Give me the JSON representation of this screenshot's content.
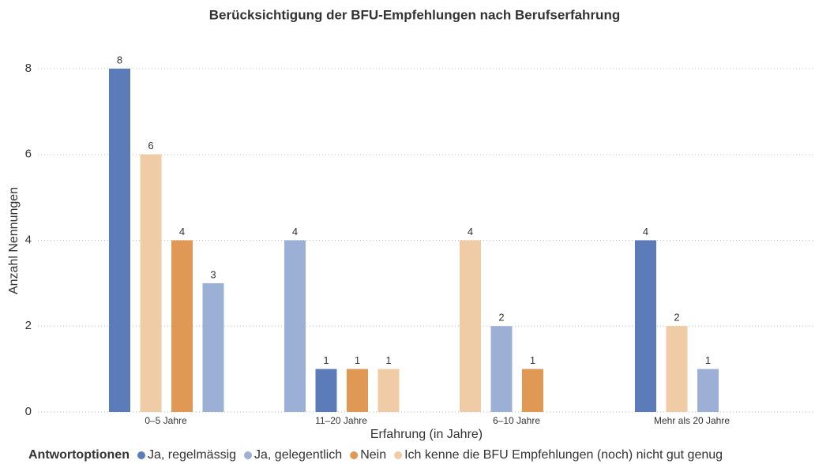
{
  "chart_data": {
    "type": "bar",
    "title": "Berücksichtigung der BFU-Empfehlungen nach Berufserfahrung",
    "x_label": "Erfahrung (in Jahre)",
    "y_label": "Anzahl Nennungen",
    "legend_title": "Antwortoptionen",
    "categories": [
      "0–5 Jahre",
      "11–20 Jahre",
      "6–10 Jahre",
      "Mehr als 20 Jahre"
    ],
    "series": [
      {
        "name": "Ja, regelmässig",
        "color": "#5b7bb9",
        "values": [
          8,
          1,
          null,
          4
        ]
      },
      {
        "name": "Ja, gelegentlich",
        "color": "#9bb0d4",
        "values": [
          3,
          4,
          2,
          1
        ]
      },
      {
        "name": "Nein",
        "color": "#e09955",
        "values": [
          4,
          1,
          1,
          null
        ]
      },
      {
        "name": "Ich kenne die BFU Empfehlungen (noch) nicht gut genug",
        "color": "#efcba6",
        "values": [
          6,
          1,
          4,
          2
        ]
      }
    ],
    "ylim": [
      0,
      8
    ],
    "yticks": [
      0,
      2,
      4,
      6,
      8
    ],
    "grid": true,
    "legend": "bottom"
  }
}
